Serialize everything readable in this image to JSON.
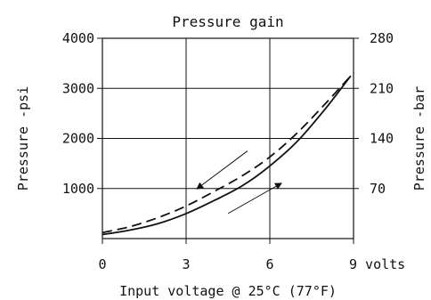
{
  "chart_data": {
    "type": "line",
    "title": "Pressure gain",
    "xlabel": "Input voltage @ 25°C (77°F)",
    "ylabel_left": "Pressure -psi",
    "ylabel_right": "Pressure -bar",
    "xlim": [
      0,
      9
    ],
    "ylim": [
      0,
      4000
    ],
    "y2lim": [
      0,
      280
    ],
    "x_ticks": [
      0,
      3,
      6,
      9
    ],
    "x_tick_labels": [
      "0",
      "3",
      "6",
      "9 volts"
    ],
    "y_ticks": [
      1000,
      2000,
      3000,
      4000
    ],
    "y_tick_labels": [
      "1000",
      "2000",
      "3000",
      "4000"
    ],
    "y2_ticks": [
      70,
      140,
      210,
      280
    ],
    "y2_tick_labels": [
      "70",
      "140",
      "210",
      "280"
    ],
    "grid": true,
    "series": [
      {
        "style": "solid",
        "x": [
          0,
          1,
          2,
          3,
          4,
          5,
          6,
          7,
          8,
          8.9
        ],
        "y": [
          80,
          170,
          300,
          500,
          760,
          1050,
          1450,
          1950,
          2600,
          3250
        ]
      },
      {
        "style": "dashed",
        "x": [
          0,
          1,
          2,
          3,
          4,
          5,
          6,
          7,
          8,
          8.9
        ],
        "y": [
          120,
          240,
          420,
          650,
          940,
          1250,
          1630,
          2120,
          2700,
          3250
        ]
      }
    ],
    "annotations": [
      {
        "type": "arrow",
        "direction": "down-left",
        "from": [
          5.2,
          1750
        ],
        "to": [
          3.4,
          1000
        ]
      },
      {
        "type": "arrow",
        "direction": "up-right",
        "from": [
          4.5,
          500
        ],
        "to": [
          6.4,
          1100
        ]
      }
    ]
  }
}
